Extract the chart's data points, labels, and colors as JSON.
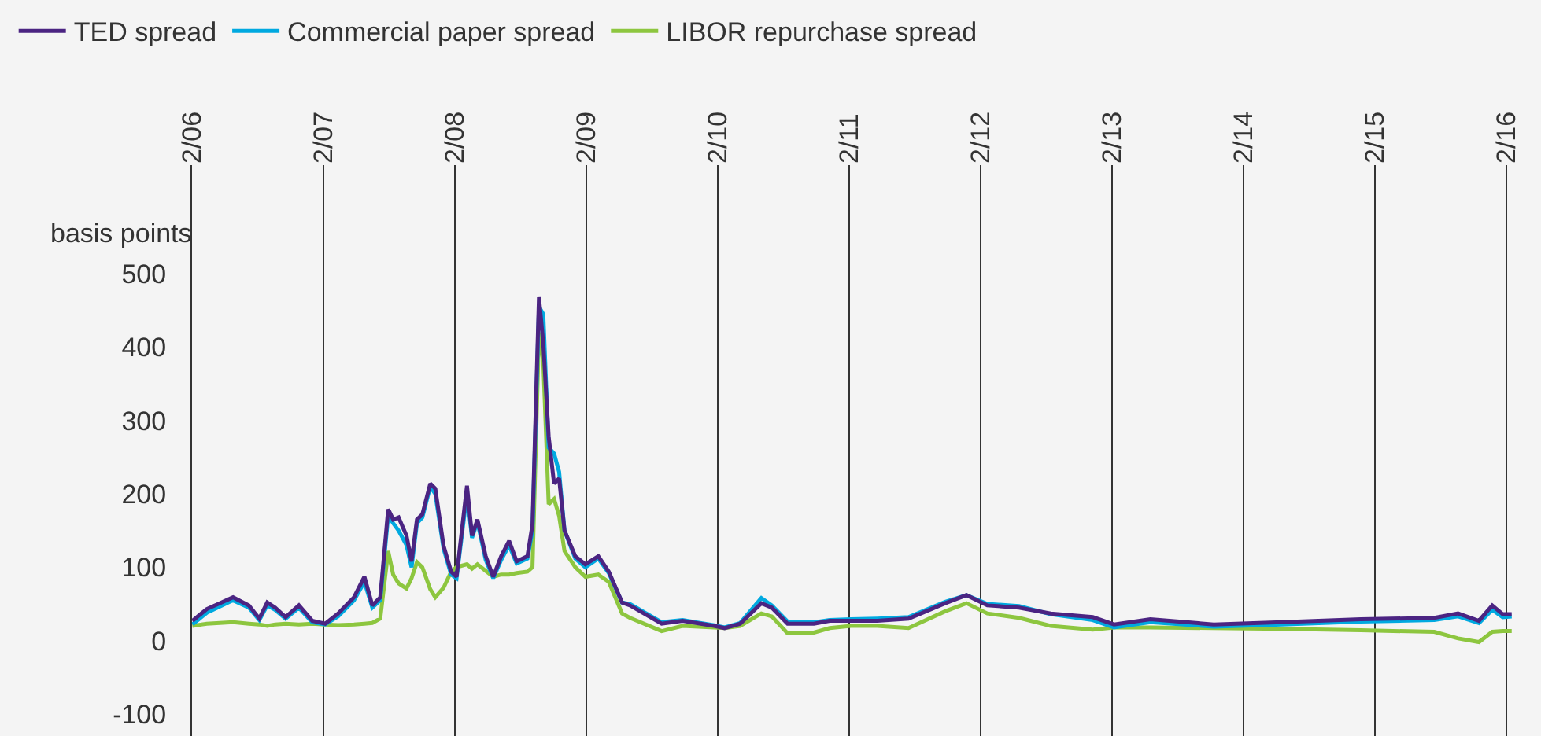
{
  "chart_data": {
    "type": "line",
    "ylabel": "basis points",
    "x": [
      "2006-02-02",
      "2006-03-14",
      "2006-05-26",
      "2006-07-09",
      "2006-08-07",
      "2006-08-29",
      "2006-09-20",
      "2006-10-19",
      "2006-11-25",
      "2007-01-01",
      "2007-02-06",
      "2007-03-14",
      "2007-04-27",
      "2007-05-26",
      "2007-06-17",
      "2007-07-09",
      "2007-07-31",
      "2007-08-14",
      "2007-08-29",
      "2007-09-20",
      "2007-10-04",
      "2007-10-19",
      "2007-11-03",
      "2007-11-25",
      "2007-12-09",
      "2008-01-01",
      "2008-01-22",
      "2008-02-06",
      "2008-03-06",
      "2008-03-20",
      "2008-04-04",
      "2008-04-27",
      "2008-05-18",
      "2008-06-09",
      "2008-07-01",
      "2008-07-22",
      "2008-08-21",
      "2008-09-04",
      "2008-09-22",
      "2008-10-04",
      "2008-10-19",
      "2008-11-03",
      "2008-11-17",
      "2008-12-02",
      "2009-01-01",
      "2009-01-29",
      "2009-03-06",
      "2009-04-04",
      "2009-05-11",
      "2009-06-02",
      "2009-08-29",
      "2009-10-26",
      "2010-01-22",
      "2010-02-20",
      "2010-04-04",
      "2010-06-02",
      "2010-07-01",
      "2010-08-14",
      "2010-10-26",
      "2010-12-09",
      "2011-02-06",
      "2011-04-20",
      "2011-07-16",
      "2011-10-26",
      "2011-12-24",
      "2012-02-20",
      "2012-05-18",
      "2012-08-14",
      "2012-12-09",
      "2013-02-06",
      "2013-05-18",
      "2013-11-10",
      "2014-05-18",
      "2014-12-24",
      "2015-07-16",
      "2015-09-20",
      "2015-11-17",
      "2015-12-24",
      "2016-01-22",
      "2016-02-16"
    ],
    "series": [
      {
        "name": "TED spread",
        "color": "#4b2482",
        "values": [
          27,
          43,
          59,
          48,
          30,
          52,
          45,
          32,
          48,
          27,
          23,
          37,
          59,
          87,
          48,
          59,
          179,
          165,
          168,
          143,
          108,
          165,
          172,
          214,
          207,
          129,
          94,
          87,
          211,
          143,
          165,
          115,
          87,
          115,
          136,
          108,
          115,
          158,
          468,
          405,
          278,
          214,
          221,
          150,
          115,
          104,
          115,
          94,
          52,
          48,
          23,
          27,
          20,
          17,
          23,
          51,
          45,
          23,
          23,
          27,
          27,
          27,
          30,
          51,
          62,
          48,
          45,
          37,
          32,
          22,
          29,
          22,
          25,
          29,
          31,
          37,
          27,
          48,
          36,
          36
        ]
      },
      {
        "name": "Commercial paper spread",
        "color": "#00a9e0",
        "values": [
          22,
          38,
          55,
          45,
          28,
          48,
          42,
          30,
          45,
          25,
          22,
          33,
          55,
          80,
          45,
          55,
          170,
          160,
          150,
          130,
          100,
          160,
          168,
          210,
          200,
          125,
          90,
          85,
          200,
          140,
          162,
          110,
          85,
          110,
          130,
          105,
          112,
          150,
          455,
          445,
          263,
          255,
          230,
          150,
          112,
          100,
          112,
          92,
          52,
          50,
          25,
          28,
          21,
          18,
          24,
          58,
          48,
          26,
          25,
          28,
          29,
          30,
          32,
          53,
          62,
          50,
          47,
          36,
          28,
          18,
          25,
          19,
          22,
          26,
          28,
          33,
          24,
          42,
          32,
          33
        ]
      },
      {
        "name": "LIBOR repurchase spread",
        "color": "#8dc63f",
        "values": [
          20,
          23,
          25,
          23,
          22,
          20,
          22,
          23,
          22,
          23,
          22,
          21,
          22,
          23,
          24,
          30,
          122,
          90,
          78,
          71,
          85,
          107,
          100,
          70,
          59,
          72,
          94,
          100,
          104,
          98,
          104,
          95,
          87,
          90,
          90,
          92,
          94,
          100,
          420,
          380,
          186,
          193,
          170,
          122,
          100,
          87,
          90,
          80,
          37,
          31,
          13,
          20,
          18,
          17,
          20,
          37,
          33,
          10,
          11,
          17,
          20,
          20,
          17,
          40,
          51,
          37,
          31,
          20,
          15,
          18,
          18,
          17,
          16,
          14,
          12,
          3,
          -2,
          12,
          13,
          13
        ]
      }
    ],
    "xlim": [
      "2006-02-01",
      "2016-04-20"
    ],
    "xticks": [
      {
        "value": "2006-02-01",
        "label": "2/06"
      },
      {
        "value": "2007-02-01",
        "label": "2/07"
      },
      {
        "value": "2008-02-01",
        "label": "2/08"
      },
      {
        "value": "2009-02-01",
        "label": "2/09"
      },
      {
        "value": "2010-02-01",
        "label": "2/10"
      },
      {
        "value": "2011-02-01",
        "label": "2/11"
      },
      {
        "value": "2012-02-01",
        "label": "2/12"
      },
      {
        "value": "2013-02-01",
        "label": "2/13"
      },
      {
        "value": "2014-02-01",
        "label": "2/14"
      },
      {
        "value": "2015-02-01",
        "label": "2/15"
      },
      {
        "value": "2016-02-01",
        "label": "2/16"
      }
    ],
    "ylim": [
      -130,
      648
    ],
    "yticks": [
      -100,
      0,
      100,
      200,
      300,
      400,
      500
    ],
    "grid": "x",
    "legend": "top left",
    "marker": "none",
    "line_style": "solid"
  }
}
